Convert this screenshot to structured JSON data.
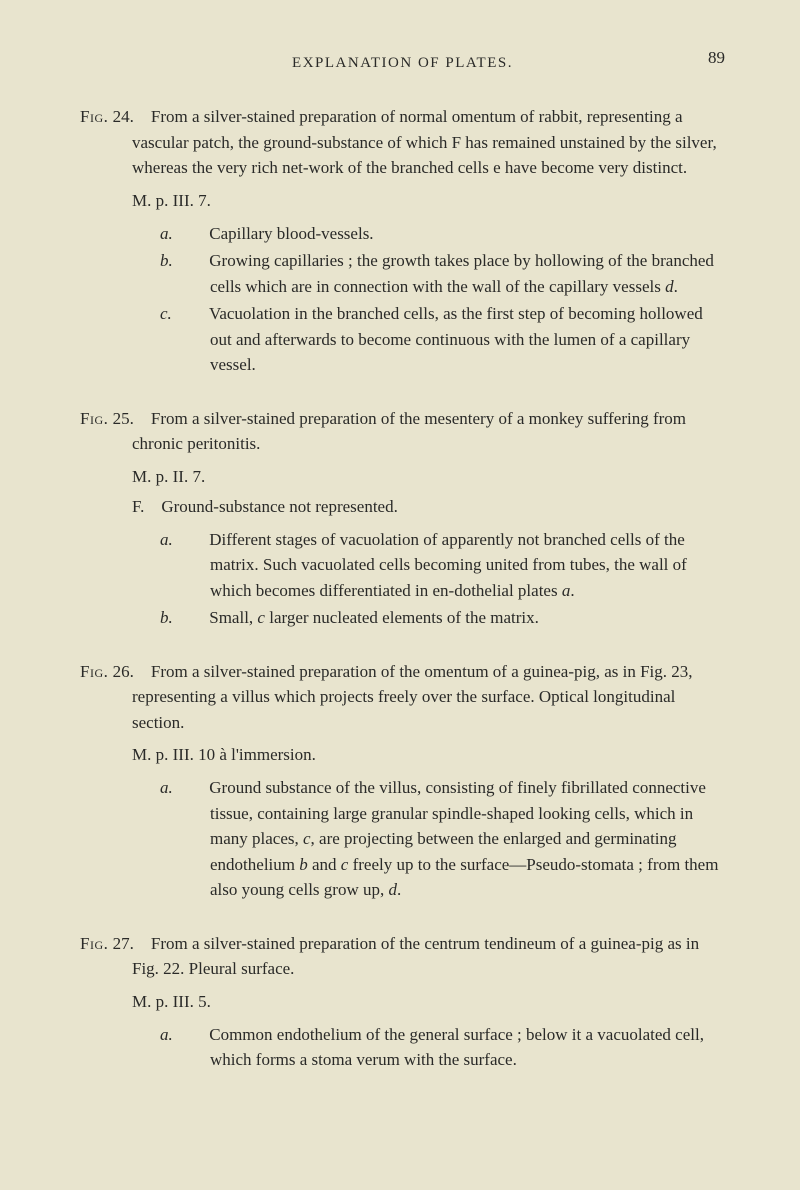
{
  "header": {
    "title": "EXPLANATION OF PLATES.",
    "pageNumber": "89"
  },
  "figures": [
    {
      "label": "Fig.",
      "number": "24.",
      "intro": "From a silver-stained preparation of normal omentum of rabbit, representing a vascular patch, the ground-substance of which F has remained unstained by the silver, whereas the very rich net-work of the branched cells e have become very distinct.",
      "mp": "M. p. III. 7.",
      "fLine": null,
      "items": [
        {
          "label": "a.",
          "text": "Capillary blood-vessels."
        },
        {
          "label": "b.",
          "text": "Growing capillaries ; the growth takes place by hollowing of the branched cells which are in connection with the wall of the capillary vessels d.",
          "italic_refs": [
            "d"
          ]
        },
        {
          "label": "c.",
          "text": "Vacuolation in the branched cells, as the first step of becoming hollowed out and afterwards to become continuous with the lumen of a capillary vessel."
        }
      ]
    },
    {
      "label": "Fig.",
      "number": "25.",
      "intro": "From a silver-stained preparation of the mesentery of a monkey suffering from chronic peritonitis.",
      "mp": "M. p. II. 7.",
      "fLine": "F. Ground-substance not represented.",
      "items": [
        {
          "label": "a.",
          "text": "Different stages of vacuolation of apparently not branched cells of the matrix. Such vacuolated cells becoming united from tubes, the wall of which becomes differentiated in en-dothelial plates a.",
          "italic_refs": [
            "a"
          ]
        },
        {
          "label": "b.",
          "text": "Small, c larger nucleated elements of the matrix.",
          "italic_refs": [
            "c"
          ]
        }
      ]
    },
    {
      "label": "Fig.",
      "number": "26.",
      "intro": "From a silver-stained preparation of the omentum of a guinea-pig, as in Fig. 23, representing a villus which projects freely over the surface. Optical longitudinal section.",
      "mp": "M. p. III. 10 à l'immersion.",
      "fLine": null,
      "items": [
        {
          "label": "a.",
          "text": "Ground substance of the villus, consisting of finely fibrillated connective tissue, containing large granular spindle-shaped looking cells, which in many places, c, are projecting between the enlarged and germinating endothelium b and c freely up to the surface—Pseudo-stomata ; from them also young cells grow up, d.",
          "italic_refs": [
            "c",
            "b",
            "c",
            "d"
          ]
        }
      ]
    },
    {
      "label": "Fig.",
      "number": "27.",
      "intro": "From a silver-stained preparation of the centrum tendineum of a guinea-pig as in Fig. 22. Pleural surface.",
      "mp": "M. p. III. 5.",
      "fLine": null,
      "items": [
        {
          "label": "a.",
          "text": "Common endothelium of the general surface ; below it a vacuolated cell, which forms a stoma verum with the surface."
        }
      ]
    }
  ]
}
